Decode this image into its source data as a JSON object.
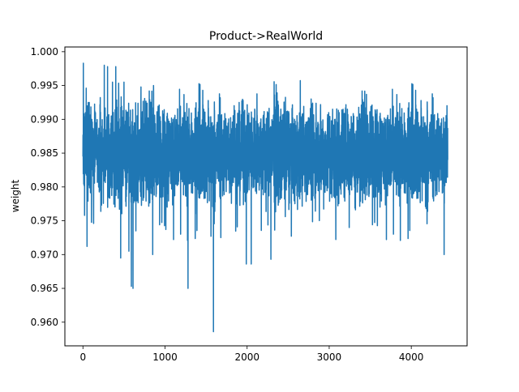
{
  "chart_data": {
    "type": "line",
    "title": "Product->RealWorld",
    "xlabel": "",
    "ylabel": "weight",
    "xlim": [
      -220,
      4680
    ],
    "ylim": [
      0.9565,
      1.0007
    ],
    "xticks": [
      0,
      1000,
      2000,
      3000,
      4000
    ],
    "xtick_labels": [
      "0",
      "1000",
      "2000",
      "3000",
      "4000"
    ],
    "yticks": [
      0.96,
      0.965,
      0.97,
      0.975,
      0.98,
      0.985,
      0.99,
      0.995,
      1.0
    ],
    "ytick_labels": [
      "0.960",
      "0.965",
      "0.970",
      "0.975",
      "0.980",
      "0.985",
      "0.990",
      "0.995",
      "1.000"
    ],
    "grid": false,
    "legend": "none",
    "series": [
      {
        "color": "#1f77b4",
        "points_count": 4445,
        "x_range": [
          0,
          4444
        ],
        "mean": 0.985,
        "typical_band": [
          0.979,
          0.99
        ],
        "notable_points": [
          {
            "x": 0,
            "y": 0.9845
          },
          {
            "x": 5,
            "y": 0.9983
          },
          {
            "x": 20,
            "y": 0.9758
          },
          {
            "x": 40,
            "y": 0.9946
          },
          {
            "x": 50,
            "y": 0.9712
          },
          {
            "x": 130,
            "y": 0.9746
          },
          {
            "x": 260,
            "y": 0.998
          },
          {
            "x": 300,
            "y": 0.9978
          },
          {
            "x": 360,
            "y": 0.9955
          },
          {
            "x": 400,
            "y": 0.9978
          },
          {
            "x": 460,
            "y": 0.9695
          },
          {
            "x": 500,
            "y": 0.9955
          },
          {
            "x": 560,
            "y": 0.9705
          },
          {
            "x": 590,
            "y": 0.9653
          },
          {
            "x": 610,
            "y": 0.965
          },
          {
            "x": 860,
            "y": 0.995
          },
          {
            "x": 850,
            "y": 0.97
          },
          {
            "x": 1010,
            "y": 0.9737
          },
          {
            "x": 1280,
            "y": 0.965
          },
          {
            "x": 1370,
            "y": 0.976
          },
          {
            "x": 1560,
            "y": 0.9727
          },
          {
            "x": 1590,
            "y": 0.9586
          },
          {
            "x": 1680,
            "y": 0.9725
          },
          {
            "x": 1880,
            "y": 0.9741
          },
          {
            "x": 1990,
            "y": 0.9686
          },
          {
            "x": 2050,
            "y": 0.9686
          },
          {
            "x": 2290,
            "y": 0.9693
          },
          {
            "x": 3200,
            "y": 0.9917
          },
          {
            "x": 3560,
            "y": 0.9914
          },
          {
            "x": 3950,
            "y": 0.9776
          },
          {
            "x": 4400,
            "y": 0.97
          },
          {
            "x": 4444,
            "y": 0.984
          }
        ]
      }
    ]
  }
}
